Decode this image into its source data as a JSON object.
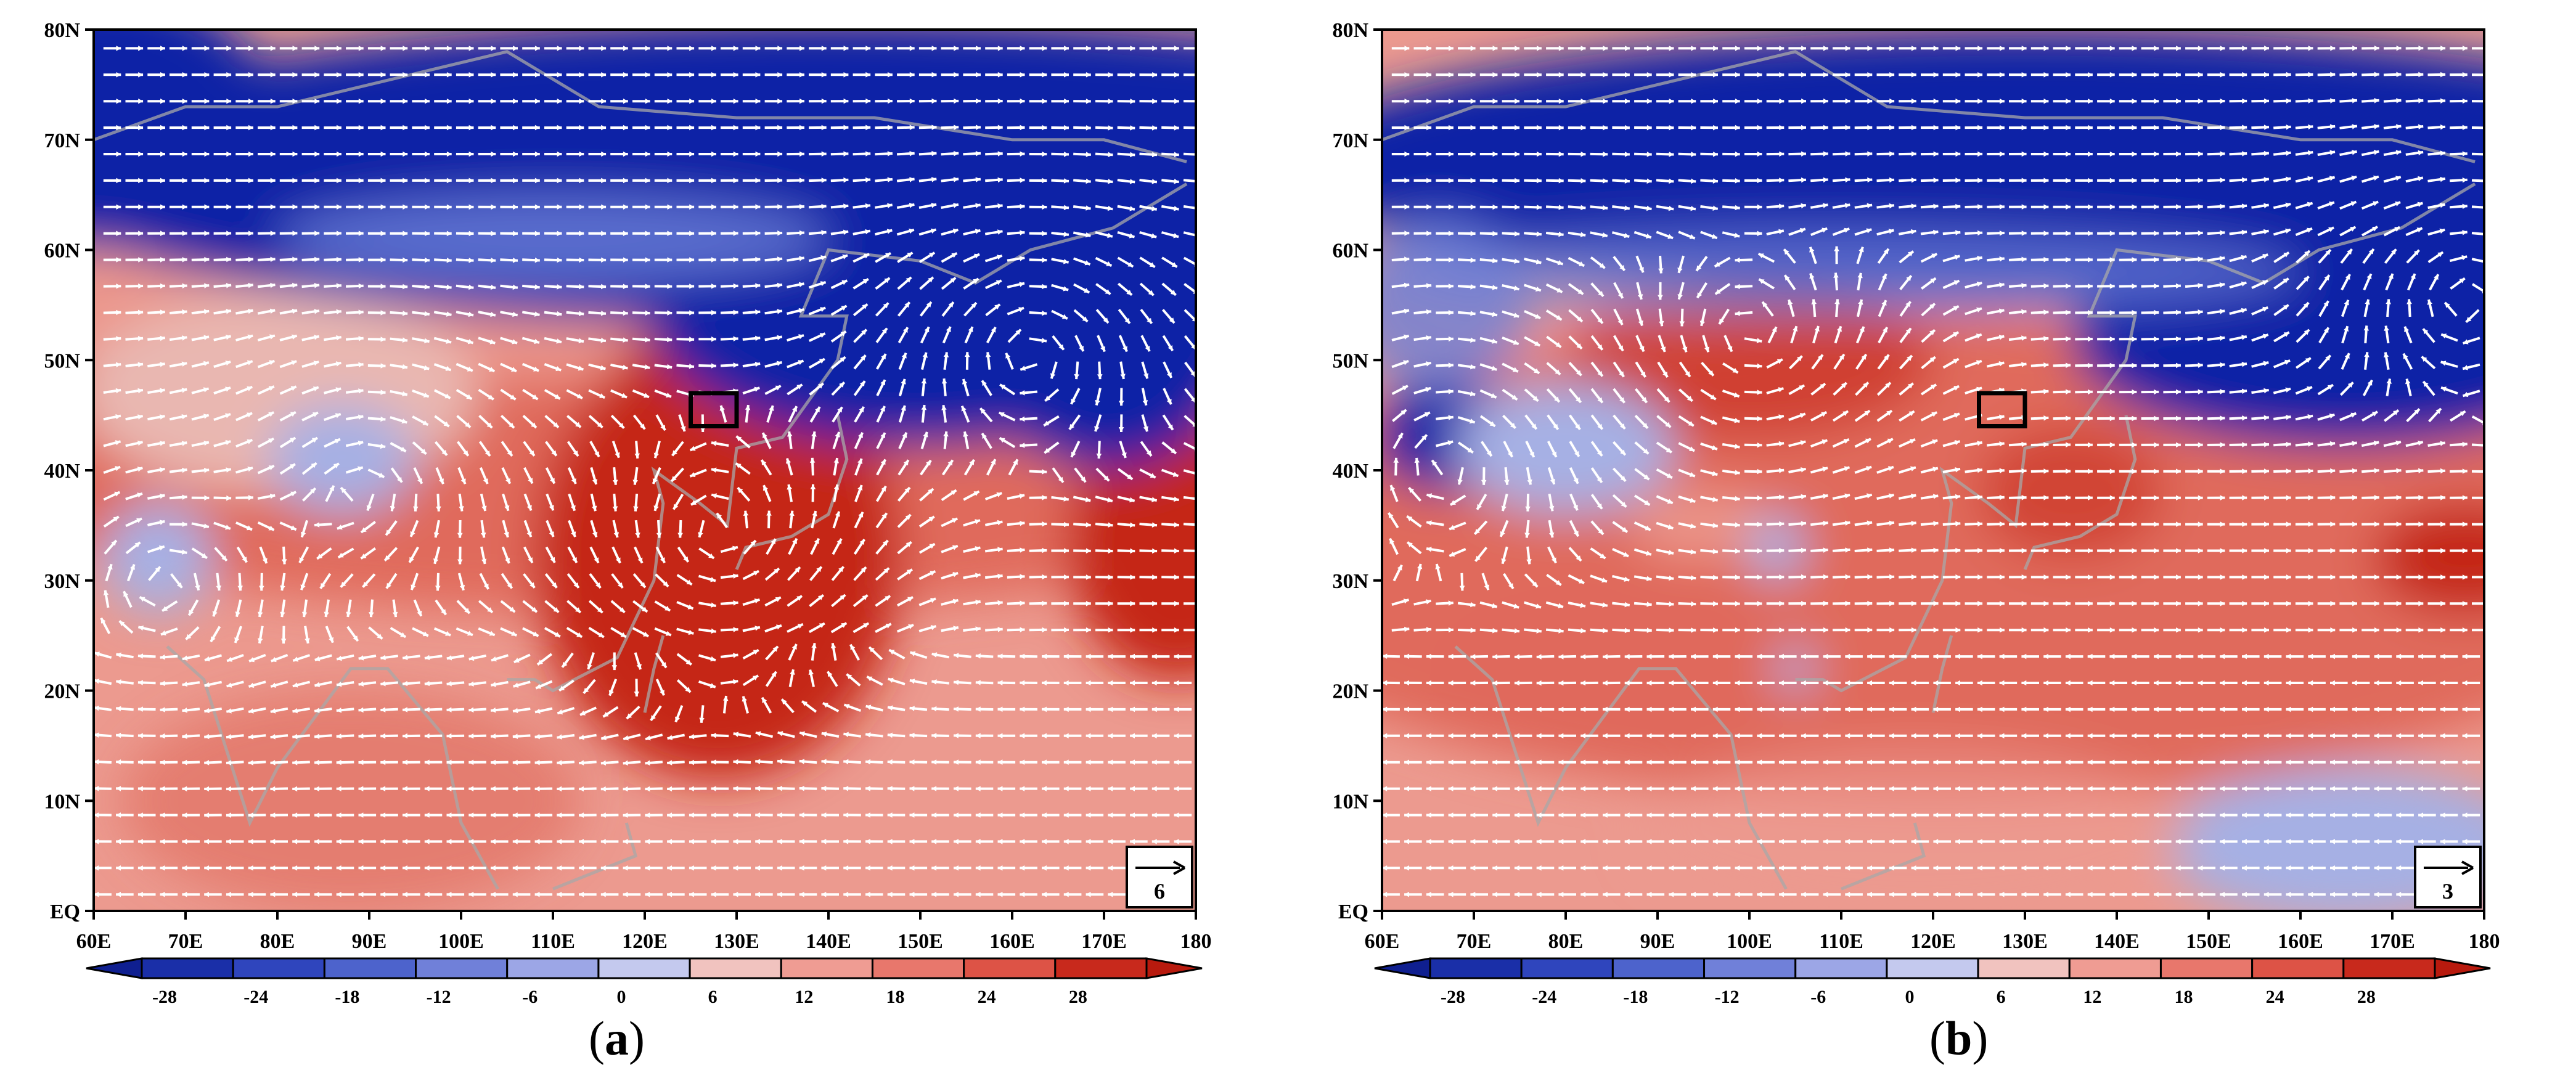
{
  "panels": [
    {
      "id": "a",
      "caption_open": "(",
      "caption_letter": "a",
      "caption_close": ")",
      "reference_vector_label": "6",
      "x_tick_labels": [
        "60E",
        "70E",
        "80E",
        "90E",
        "100E",
        "110E",
        "120E",
        "130E",
        "140E",
        "150E",
        "160E",
        "170E",
        "180"
      ],
      "y_tick_labels": [
        "EQ",
        "10N",
        "20N",
        "30N",
        "40N",
        "50N",
        "60N",
        "70N",
        "80N"
      ],
      "highlight_box": {
        "lon_min": 125,
        "lon_max": 130,
        "lat_min": 44,
        "lat_max": 47
      }
    },
    {
      "id": "b",
      "caption_open": "(",
      "caption_letter": "b",
      "caption_close": ")",
      "reference_vector_label": "3",
      "x_tick_labels": [
        "60E",
        "70E",
        "80E",
        "90E",
        "100E",
        "110E",
        "120E",
        "130E",
        "140E",
        "150E",
        "160E",
        "170E",
        "180"
      ],
      "y_tick_labels": [
        "EQ",
        "10N",
        "20N",
        "30N",
        "40N",
        "50N",
        "60N",
        "70N",
        "80N"
      ],
      "highlight_box": {
        "lon_min": 125,
        "lon_max": 130,
        "lat_min": 44,
        "lat_max": 47
      }
    }
  ],
  "colorbar": {
    "labels": [
      "-28",
      "-24",
      "-18",
      "-12",
      "-6",
      "0",
      "6",
      "12",
      "18",
      "24",
      "28"
    ],
    "colors": [
      "#1a2fa8",
      "#2f45bd",
      "#4d63cc",
      "#7080d9",
      "#9ca6e6",
      "#c4c9ee",
      "#f1c3bf",
      "#ef9c93",
      "#e8776c",
      "#dd5346",
      "#c8291c"
    ],
    "under_color": "#0f1f90",
    "over_color": "#b81a0e"
  },
  "colors": {
    "deep_blue": "#0f24a6",
    "mid_blue": "#6d80d8",
    "light_blue": "#a6b0e4",
    "pale": "#e9b7b1",
    "light_red": "#ec9a8f",
    "mid_red": "#e06a5c",
    "deep_red": "#c52616",
    "vector": "#ffffff",
    "coast": "#a8a8a8"
  }
}
